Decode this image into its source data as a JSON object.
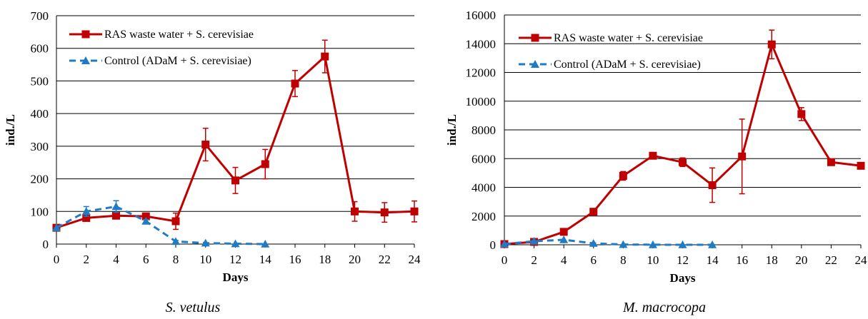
{
  "chart_data": [
    {
      "type": "line",
      "caption": "S. vetulus",
      "xlabel": "Days",
      "ylabel": "ind./L",
      "x": [
        0,
        2,
        4,
        6,
        8,
        10,
        12,
        14,
        16,
        18,
        20,
        22,
        24
      ],
      "xlim": [
        0,
        24
      ],
      "ylim": [
        0,
        700
      ],
      "yticks": [
        0,
        100,
        200,
        300,
        400,
        500,
        600,
        700
      ],
      "grid": true,
      "legend_position": "top-left",
      "series": [
        {
          "name": "RAS waste water + S. cerevisiae",
          "color": "#C00000",
          "marker": "square",
          "dash": false,
          "points": [
            {
              "x": 0,
              "y": 50,
              "err": 0
            },
            {
              "x": 2,
              "y": 80,
              "err": 5
            },
            {
              "x": 4,
              "y": 87,
              "err": 5
            },
            {
              "x": 6,
              "y": 85,
              "err": 5
            },
            {
              "x": 8,
              "y": 70,
              "err": 25
            },
            {
              "x": 10,
              "y": 305,
              "err": 50
            },
            {
              "x": 12,
              "y": 195,
              "err": 40
            },
            {
              "x": 14,
              "y": 245,
              "err": 45
            },
            {
              "x": 16,
              "y": 492,
              "err": 40
            },
            {
              "x": 18,
              "y": 575,
              "err": 50
            },
            {
              "x": 20,
              "y": 100,
              "err": 30
            },
            {
              "x": 22,
              "y": 97,
              "err": 30
            },
            {
              "x": 24,
              "y": 100,
              "err": 32
            }
          ]
        },
        {
          "name": "Control (ADaM + S. cerevisiae)",
          "color": "#1F7CC4",
          "marker": "triangle",
          "dash": true,
          "points": [
            {
              "x": 0,
              "y": 50,
              "err": 0
            },
            {
              "x": 2,
              "y": 100,
              "err": 15
            },
            {
              "x": 4,
              "y": 115,
              "err": 18
            },
            {
              "x": 6,
              "y": 70,
              "err": 5
            },
            {
              "x": 8,
              "y": 8,
              "err": 3
            },
            {
              "x": 10,
              "y": 3,
              "err": 0
            },
            {
              "x": 12,
              "y": 1,
              "err": 0
            },
            {
              "x": 14,
              "y": 0,
              "err": 0
            }
          ]
        }
      ]
    },
    {
      "type": "line",
      "caption": "M. macrocopa",
      "xlabel": "Days",
      "ylabel": "ind./L",
      "x": [
        0,
        2,
        4,
        6,
        8,
        10,
        12,
        14,
        16,
        18,
        20,
        22,
        24
      ],
      "xlim": [
        0,
        24
      ],
      "ylim": [
        0,
        16000
      ],
      "yticks": [
        0,
        2000,
        4000,
        6000,
        8000,
        10000,
        12000,
        14000,
        16000
      ],
      "grid": true,
      "legend_position": "top-left",
      "series": [
        {
          "name": "RAS waste water + S. cerevisiae",
          "color": "#C00000",
          "marker": "square",
          "dash": false,
          "points": [
            {
              "x": 0,
              "y": 50,
              "err": 0
            },
            {
              "x": 2,
              "y": 200,
              "err": 0
            },
            {
              "x": 4,
              "y": 900,
              "err": 0
            },
            {
              "x": 6,
              "y": 2300,
              "err": 200
            },
            {
              "x": 8,
              "y": 4800,
              "err": 300
            },
            {
              "x": 10,
              "y": 6200,
              "err": 200
            },
            {
              "x": 12,
              "y": 5750,
              "err": 300
            },
            {
              "x": 14,
              "y": 4150,
              "err": 1200
            },
            {
              "x": 16,
              "y": 6150,
              "err": 2600
            },
            {
              "x": 18,
              "y": 13950,
              "err": 1000
            },
            {
              "x": 20,
              "y": 9100,
              "err": 450
            },
            {
              "x": 22,
              "y": 5750,
              "err": 0
            },
            {
              "x": 24,
              "y": 5500,
              "err": 0
            }
          ]
        },
        {
          "name": "Control (ADaM + S. cerevisiae)",
          "color": "#1F7CC4",
          "marker": "triangle",
          "dash": true,
          "points": [
            {
              "x": 0,
              "y": 50,
              "err": 0
            },
            {
              "x": 2,
              "y": 250,
              "err": 0
            },
            {
              "x": 4,
              "y": 350,
              "err": 0
            },
            {
              "x": 6,
              "y": 100,
              "err": 0
            },
            {
              "x": 8,
              "y": 20,
              "err": 0
            },
            {
              "x": 10,
              "y": 5,
              "err": 0
            },
            {
              "x": 12,
              "y": 0,
              "err": 0
            },
            {
              "x": 14,
              "y": 0,
              "err": 0
            }
          ]
        }
      ]
    }
  ]
}
